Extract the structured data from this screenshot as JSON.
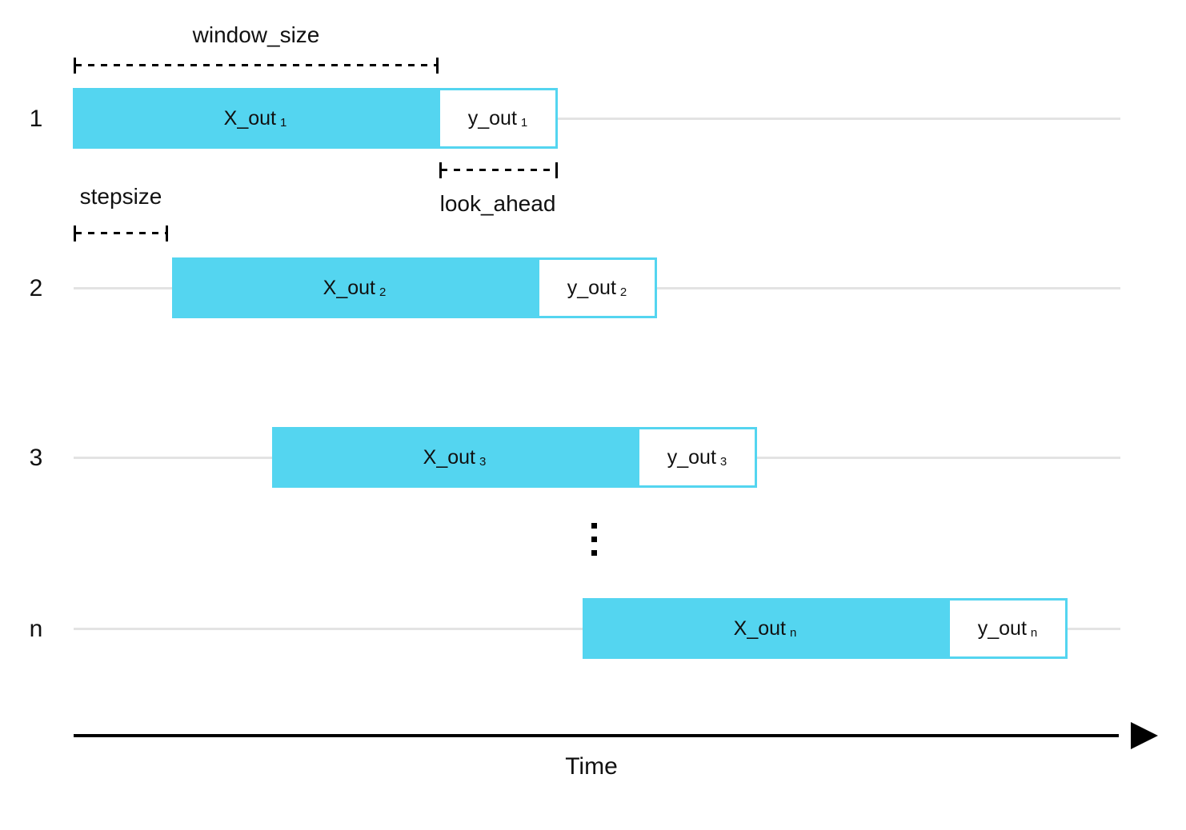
{
  "colors": {
    "window_fill": "#54d5f0",
    "window_border": "#54d5f0",
    "row_line": "#e3e3e3",
    "axis_color": "#000000",
    "text_color": "#111111"
  },
  "annotations": {
    "window_size": "window_size",
    "stepsize": "stepsize",
    "look_ahead": "look_ahead"
  },
  "rows": [
    {
      "index": "1",
      "x_label": "X_out",
      "x_sub": "1",
      "y_label": "y_out",
      "y_sub": "1"
    },
    {
      "index": "2",
      "x_label": "X_out",
      "x_sub": "2",
      "y_label": "y_out",
      "y_sub": "2"
    },
    {
      "index": "3",
      "x_label": "X_out",
      "x_sub": "3",
      "y_label": "y_out",
      "y_sub": "3"
    },
    {
      "index": "n",
      "x_label": "X_out",
      "x_sub": "n",
      "y_label": "y_out",
      "y_sub": "n"
    }
  ],
  "icons": {
    "vertical_ellipsis": "⋮",
    "time_arrow": "right-filled-triangle"
  },
  "time_axis": {
    "label": "Time"
  }
}
